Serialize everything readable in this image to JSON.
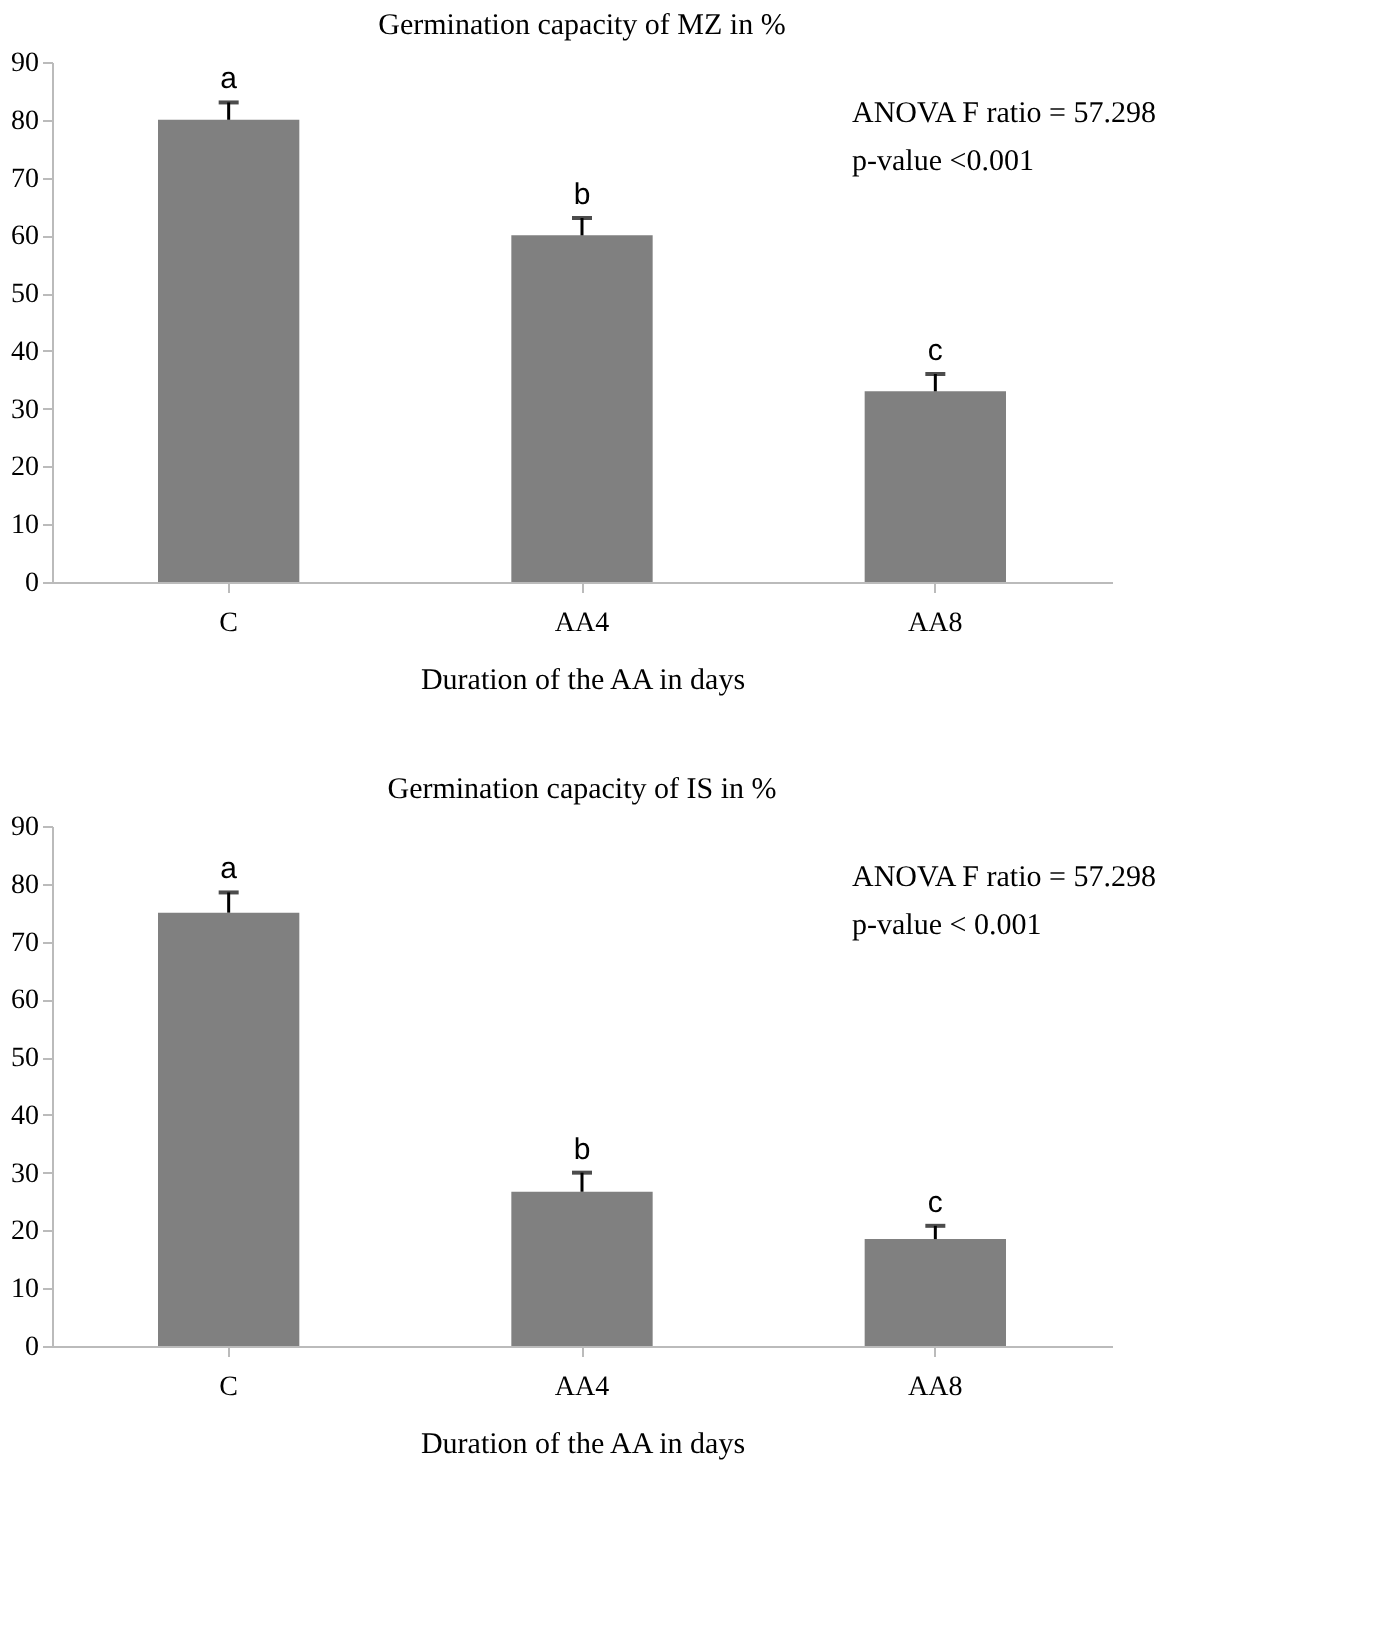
{
  "chart_data": [
    {
      "type": "bar",
      "title": "Germination capacity of MZ in %",
      "xlabel": "Duration of the AA in days",
      "categories": [
        "C",
        "AA4",
        "AA8"
      ],
      "values": [
        80,
        60,
        33
      ],
      "color": "#808080",
      "errors": [
        [
          80,
          83
        ],
        [
          60,
          63
        ],
        [
          33,
          36
        ]
      ],
      "ylim": [
        0,
        90
      ],
      "yticks": [
        0,
        10,
        20,
        30,
        40,
        50,
        60,
        70,
        80,
        90
      ],
      "grid": false,
      "annotations": [
        {
          "text": "a",
          "x": "C",
          "y": 83
        },
        {
          "text": "b",
          "x": "AA4",
          "y": 63
        },
        {
          "text": "c",
          "x": "AA8",
          "y": 36
        },
        "ANOVA  F ratio = 57.298",
        "p-value <0.001"
      ]
    },
    {
      "type": "bar",
      "title": "Germination capacity of IS in %",
      "xlabel": "Duration of the AA in days",
      "categories": [
        "C",
        "AA4",
        "AA8"
      ],
      "values": [
        75,
        26.7,
        18.5
      ],
      "color": "#808080",
      "errors": [
        [
          75,
          78.5
        ],
        [
          26.7,
          30
        ],
        [
          18.5,
          20.8
        ]
      ],
      "ylim": [
        0,
        90
      ],
      "yticks": [
        0,
        10,
        20,
        30,
        40,
        50,
        60,
        70,
        80,
        90
      ],
      "grid": false,
      "annotations": [
        {
          "text": "a",
          "x": "C",
          "y": 78.5
        },
        {
          "text": "b",
          "x": "AA4",
          "y": 30
        },
        {
          "text": "c",
          "x": "AA8",
          "y": 20.8
        },
        "ANOVA F ratio = 57.298",
        "p-value < 0.001"
      ]
    }
  ]
}
